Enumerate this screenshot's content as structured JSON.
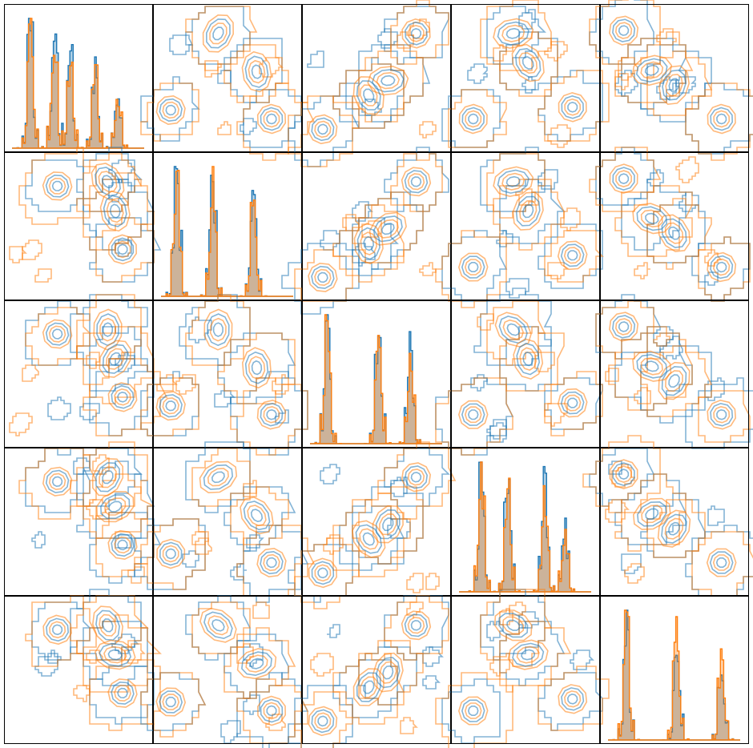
{
  "chart_data": {
    "type": "pairplot",
    "grid": [
      5,
      5
    ],
    "diagonal": "histogram",
    "offdiagonal": "contour",
    "series": [
      {
        "name": "",
        "color": "#1f77b4"
      },
      {
        "name": "",
        "color": "#ff7f0e"
      }
    ],
    "variables": [
      {
        "index": 0,
        "modes": [
          0.14,
          0.32,
          0.44,
          0.63,
          0.8
        ]
      },
      {
        "index": 1,
        "modes": [
          0.12,
          0.39,
          0.7
        ]
      },
      {
        "index": 2,
        "modes": [
          0.13,
          0.52,
          0.76
        ]
      },
      {
        "index": 3,
        "modes": [
          0.17,
          0.37,
          0.65,
          0.8
        ]
      },
      {
        "index": 4,
        "modes": [
          0.14,
          0.52,
          0.86
        ]
      }
    ],
    "cluster_centers": [
      [
        [
          0.36,
          0.23
        ],
        [
          0.7,
          0.2
        ],
        [
          0.8,
          0.66
        ],
        [
          0.75,
          0.4
        ]
      ],
      [
        [
          0.12,
          0.72
        ],
        [
          0.44,
          0.2
        ],
        [
          0.8,
          0.78
        ],
        [
          0.7,
          0.46
        ]
      ],
      [
        [
          0.14,
          0.85
        ],
        [
          0.58,
          0.52
        ],
        [
          0.77,
          0.2
        ],
        [
          0.45,
          0.62
        ]
      ],
      [
        [
          0.15,
          0.78
        ],
        [
          0.42,
          0.2
        ],
        [
          0.82,
          0.7
        ],
        [
          0.52,
          0.4
        ]
      ],
      [
        [
          0.16,
          0.18
        ],
        [
          0.5,
          0.55
        ],
        [
          0.82,
          0.78
        ],
        [
          0.35,
          0.45
        ]
      ]
    ]
  }
}
